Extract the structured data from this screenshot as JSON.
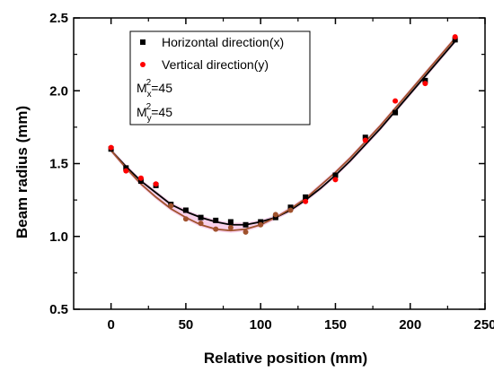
{
  "chart_data": {
    "type": "scatter",
    "xlabel": "Relative position (mm)",
    "ylabel": "Beam radius (mm)",
    "xlim": [
      -25,
      250
    ],
    "ylim": [
      0.5,
      2.5
    ],
    "xticks": [
      0,
      50,
      100,
      150,
      200,
      250
    ],
    "yticks": [
      0.5,
      1.0,
      1.5,
      2.0,
      2.5
    ],
    "xtick_labels": [
      "0",
      "50",
      "100",
      "150",
      "200",
      "250"
    ],
    "ytick_labels": [
      "0.5",
      "1.0",
      "1.5",
      "2.0",
      "2.5"
    ],
    "grid": false,
    "legend_position": "top-center",
    "series": [
      {
        "name": "Horizontal direction(x)",
        "marker": "square",
        "color": "#000000",
        "x": [
          0,
          10,
          20,
          30,
          40,
          50,
          60,
          70,
          80,
          90,
          100,
          110,
          120,
          130,
          150,
          170,
          190,
          210,
          230
        ],
        "y": [
          1.6,
          1.47,
          1.38,
          1.35,
          1.22,
          1.18,
          1.13,
          1.11,
          1.1,
          1.08,
          1.1,
          1.13,
          1.2,
          1.27,
          1.42,
          1.68,
          1.85,
          2.07,
          2.35
        ]
      },
      {
        "name": "Vertical direction(y)",
        "marker": "circle",
        "color": "#ff0000",
        "x": [
          0,
          10,
          20,
          30,
          40,
          50,
          60,
          70,
          80,
          90,
          100,
          110,
          120,
          130,
          150,
          170,
          190,
          210,
          230
        ],
        "y": [
          1.61,
          1.45,
          1.4,
          1.36,
          1.21,
          1.12,
          1.09,
          1.05,
          1.06,
          1.03,
          1.08,
          1.15,
          1.18,
          1.24,
          1.39,
          1.66,
          1.93,
          2.05,
          2.37
        ]
      }
    ],
    "fits": [
      {
        "color": "#000000",
        "x": [
          0,
          10,
          20,
          30,
          40,
          50,
          60,
          70,
          80,
          90,
          100,
          110,
          120,
          130,
          140,
          150,
          160,
          170,
          180,
          190,
          200,
          210,
          220,
          230
        ],
        "y": [
          1.59,
          1.48,
          1.38,
          1.3,
          1.22,
          1.17,
          1.13,
          1.1,
          1.08,
          1.08,
          1.1,
          1.13,
          1.18,
          1.25,
          1.33,
          1.42,
          1.52,
          1.63,
          1.74,
          1.86,
          1.98,
          2.1,
          2.22,
          2.34
        ]
      },
      {
        "color": "#a0522d",
        "x": [
          0,
          10,
          20,
          30,
          40,
          50,
          60,
          70,
          80,
          90,
          100,
          110,
          120,
          130,
          140,
          150,
          160,
          170,
          180,
          190,
          200,
          210,
          220,
          230
        ],
        "y": [
          1.59,
          1.47,
          1.36,
          1.27,
          1.19,
          1.13,
          1.08,
          1.05,
          1.04,
          1.05,
          1.08,
          1.13,
          1.19,
          1.26,
          1.35,
          1.44,
          1.54,
          1.65,
          1.76,
          1.88,
          2.0,
          2.12,
          2.24,
          2.36
        ]
      }
    ],
    "annotations": [
      {
        "base": "M",
        "sub": "x",
        "sup": "2",
        "rest": "=45"
      },
      {
        "base": "M",
        "sub": "y",
        "sup": "2",
        "rest": "=45"
      }
    ]
  }
}
